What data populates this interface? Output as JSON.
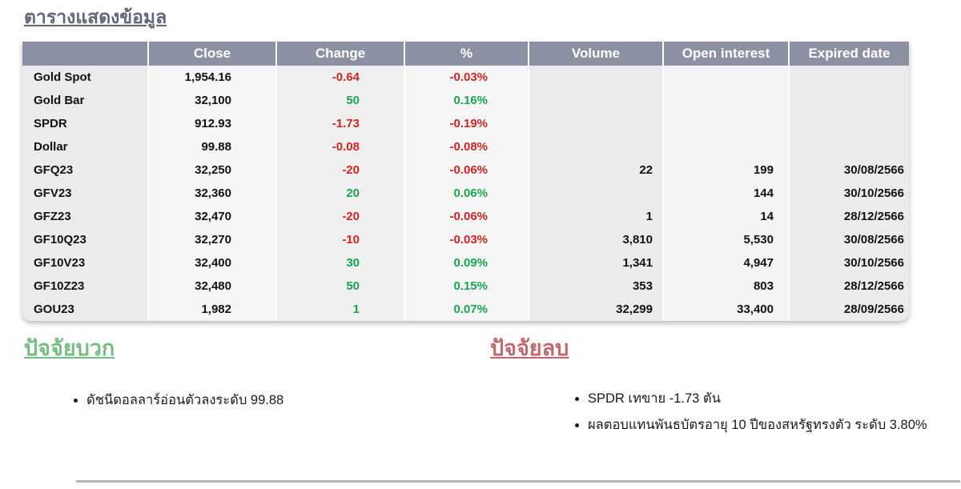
{
  "title": "ตารางแสดงข้อมูล",
  "colors": {
    "header_bg": "#8b91a2",
    "title": "#5f6779",
    "positive_value": "#17a64e",
    "negative_value": "#d42222",
    "positive_heading": "#76bd84",
    "negative_heading": "#c4686f"
  },
  "table": {
    "columns": [
      "",
      "Close",
      "Change",
      "%",
      "Volume",
      "Open interest",
      "Expired date"
    ],
    "rows": [
      {
        "name": "Gold Spot",
        "close": "1,954.16",
        "change": "-0.64",
        "pct": "-0.03%",
        "volume": "",
        "oi": "",
        "expired": ""
      },
      {
        "name": "Gold Bar",
        "close": "32,100",
        "change": "50",
        "pct": "0.16%",
        "volume": "",
        "oi": "",
        "expired": ""
      },
      {
        "name": "SPDR",
        "close": "912.93",
        "change": "-1.73",
        "pct": "-0.19%",
        "volume": "",
        "oi": "",
        "expired": ""
      },
      {
        "name": "Dollar",
        "close": "99.88",
        "change": "-0.08",
        "pct": "-0.08%",
        "volume": "",
        "oi": "",
        "expired": ""
      },
      {
        "name": "GFQ23",
        "close": "32,250",
        "change": "-20",
        "pct": "-0.06%",
        "volume": "22",
        "oi": "199",
        "expired": "30/08/2566"
      },
      {
        "name": "GFV23",
        "close": "32,360",
        "change": "20",
        "pct": "0.06%",
        "volume": "",
        "oi": "144",
        "expired": "30/10/2566"
      },
      {
        "name": "GFZ23",
        "close": "32,470",
        "change": "-20",
        "pct": "-0.06%",
        "volume": "1",
        "oi": "14",
        "expired": "28/12/2566"
      },
      {
        "name": "GF10Q23",
        "close": "32,270",
        "change": "-10",
        "pct": "-0.03%",
        "volume": "3,810",
        "oi": "5,530",
        "expired": "30/08/2566"
      },
      {
        "name": "GF10V23",
        "close": "32,400",
        "change": "30",
        "pct": "0.09%",
        "volume": "1,341",
        "oi": "4,947",
        "expired": "30/10/2566"
      },
      {
        "name": "GF10Z23",
        "close": "32,480",
        "change": "50",
        "pct": "0.15%",
        "volume": "353",
        "oi": "803",
        "expired": "28/12/2566"
      },
      {
        "name": "GOU23",
        "close": "1,982",
        "change": "1",
        "pct": "0.07%",
        "volume": "32,299",
        "oi": "33,400",
        "expired": "28/09/2566"
      }
    ]
  },
  "sections": {
    "positive": {
      "heading": "ปัจจัยบวก",
      "items": [
        "ดัชนีดอลลาร์อ่อนตัวลงระดับ 99.88"
      ]
    },
    "negative": {
      "heading": "ปัจจัยลบ",
      "items": [
        "SPDR เทขาย -1.73 ตัน",
        "ผลตอบแทนพันธบัตรอายุ 10 ปีของสหรัฐทรงตัว ระดับ 3.80%"
      ]
    }
  }
}
